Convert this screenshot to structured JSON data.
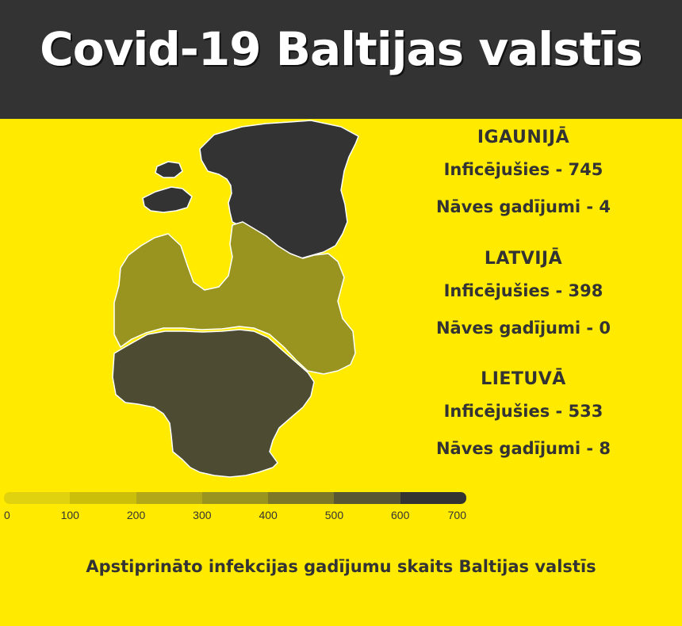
{
  "title": "Covid-19 Baltijas valstīs",
  "countries": [
    {
      "name": "IGAUNIJĀ",
      "infected_label": "Inficējušies - 745",
      "deaths_label": "Nāves gadījumi - 4",
      "infected": 745,
      "deaths": 4,
      "fill": "#333333"
    },
    {
      "name": "LATVIJĀ",
      "infected_label": "Inficējušies - 398",
      "deaths_label": "Nāves gadījumi - 0",
      "infected": 398,
      "deaths": 0,
      "fill": "#999320"
    },
    {
      "name": "LIETUVĀ",
      "infected_label": "Inficējušies - 533",
      "deaths_label": "Nāves gadījumi - 8",
      "infected": 533,
      "deaths": 8,
      "fill": "#4d4b32"
    }
  ],
  "legend": {
    "ticks": [
      "0",
      "100",
      "200",
      "300",
      "400",
      "500",
      "600",
      "700"
    ],
    "colors": [
      "#e0d20f",
      "#ccbf0a",
      "#b3a818",
      "#999320",
      "#7d7828",
      "#595634",
      "#333333"
    ]
  },
  "caption": "Apstiprināto infekcijas gadījumu skaits Baltijas valstīs",
  "colors": {
    "background": "#ffea00",
    "header": "#333333",
    "text": "#333333"
  }
}
